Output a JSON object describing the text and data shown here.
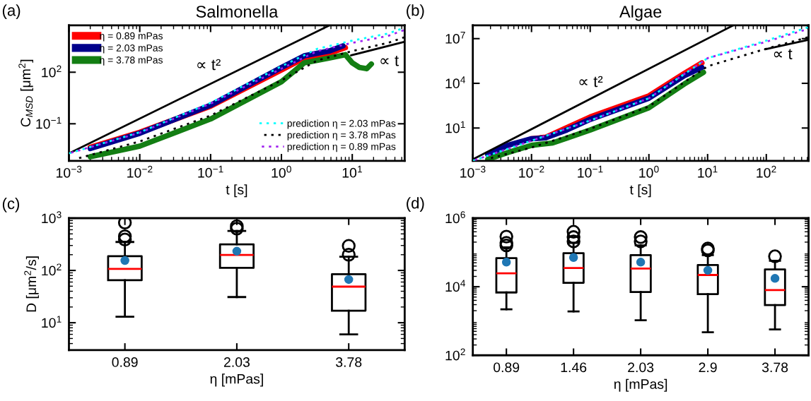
{
  "chart_data": [
    {
      "type": "line",
      "title": "Salmonella",
      "xlabel": "t [s]",
      "ylabel": "C$_{MSD}$ [μm$^{2}$]",
      "log": "xy",
      "legend": "top left",
      "xlim": [
        0.001,
        55
      ],
      "ylim": [
        0.0007,
        54000
      ],
      "xticks": [
        {
          "value": 0.001,
          "label": "10$^{−3}$"
        },
        {
          "value": 0.01,
          "label": "10$^{−2}$"
        },
        {
          "value": 0.1,
          "label": "10$^{−1}$"
        },
        {
          "value": 1,
          "label": "10$^{0}$"
        },
        {
          "value": 10,
          "label": "10$^{1}$"
        }
      ],
      "yticks": [
        {
          "value": 0.1,
          "label": "10$^{−1}$"
        },
        {
          "value": 100,
          "label": "10$^{2}$"
        }
      ],
      "annotations": [
        "(a)",
        "∝ t²",
        "∝ t"
      ],
      "series": [
        {
          "name": "η = 0.89 mPas",
          "color": "#ff0000",
          "line_style": "solid",
          "x": [
            0.002,
            0.01,
            0.1,
            1,
            2.1,
            4.7,
            8
          ],
          "values": [
            0.0043,
            0.032,
            1.05,
            135,
            660,
            1230,
            2700
          ]
        },
        {
          "name": "η = 2.03 mPas",
          "color": "#00008b",
          "line_style": "solid",
          "x": [
            0.002,
            0.01,
            0.1,
            1,
            2.1,
            4.7,
            7.4
          ],
          "values": [
            0.0036,
            0.028,
            1.2,
            190,
            900,
            1700,
            3400
          ]
        },
        {
          "name": "η = 3.78 mPas",
          "color": "#137e13",
          "line_style": "solid",
          "x": [
            0.002,
            0.01,
            0.1,
            1,
            2.1,
            4.7,
            8,
            10,
            12.6,
            16,
            18.6
          ],
          "values": [
            0.0012,
            0.005,
            0.19,
            28,
            350,
            660,
            1050,
            350,
            190,
            160,
            300
          ]
        },
        {
          "name": "prediction η = 2.03 mPas",
          "color": "#00ffff",
          "line_style": "dotted",
          "x": [
            0.001,
            0.01,
            0.1,
            1,
            3.2,
            10,
            32,
            55
          ],
          "values": [
            0.0019,
            0.032,
            1.66,
            220,
            2300,
            6900,
            17800,
            39000
          ]
        },
        {
          "name": "prediction η = 3.78 mPas",
          "color": "#000000",
          "line_style": "dotted",
          "x": [
            0.0012,
            0.01,
            0.1,
            1,
            3.2,
            10,
            32,
            55
          ],
          "values": [
            0.00085,
            0.0094,
            0.3,
            33,
            480,
            1700,
            5100,
            11000
          ]
        },
        {
          "name": "prediction η = 0.89 mPas",
          "color": "#a020f0",
          "line_style": "dotted",
          "x": [
            0.001,
            0.01,
            0.1,
            1,
            3.2,
            10,
            32,
            55
          ],
          "values": [
            0.0019,
            0.03,
            1.5,
            160,
            1700,
            5100,
            13000,
            29000
          ]
        },
        {
          "color": "#000000",
          "line_style": "solid",
          "x": [
            0.001,
            4.8
          ],
          "values": [
            0.0019,
            54000
          ]
        },
        {
          "color": "#000000",
          "line_style": "solid",
          "x": [
            9.6,
            55
          ],
          "values": [
            960,
            5900
          ]
        }
      ]
    },
    {
      "type": "line",
      "title": "Algae",
      "xlabel": "t [s]",
      "log": "xy",
      "xlim": [
        0.001,
        525
      ],
      "ylim": [
        0.063,
        79000000
      ],
      "xticks": [
        {
          "value": 0.001,
          "label": "10$^{−3}$"
        },
        {
          "value": 0.01,
          "label": "10$^{−2}$"
        },
        {
          "value": 0.1,
          "label": "10$^{−1}$"
        },
        {
          "value": 1,
          "label": "10$^{0}$"
        },
        {
          "value": 10,
          "label": "10$^{1}$"
        },
        {
          "value": 100,
          "label": "10$^{2}$"
        }
      ],
      "yticks": [
        {
          "value": 10,
          "label": "10$^{1}$"
        },
        {
          "value": 10000,
          "label": "10$^{4}$"
        },
        {
          "value": 10000000,
          "label": "10$^{7}$"
        }
      ],
      "annotations": [
        "(b)",
        "∝ t²",
        "∝ t"
      ],
      "series": [
        {
          "color": "#ff0000",
          "line_style": "solid",
          "x": [
            0.01,
            0.0174,
            0.04,
            0.1,
            1,
            4,
            8
          ],
          "values": [
            1.9,
            2.4,
            10.7,
            55,
            1450,
            46000,
            235000
          ]
        },
        {
          "color": "#00008b",
          "line_style": "solid",
          "x": [
            0.0018,
            0.004,
            0.01,
            0.0174,
            0.04,
            0.1,
            1,
            4,
            8
          ],
          "values": [
            0.16,
            0.7,
            1.9,
            2.2,
            7.4,
            38,
            1000,
            32000,
            115000
          ]
        },
        {
          "color": "#137e13",
          "line_style": "solid",
          "x": [
            0.0018,
            0.004,
            0.01,
            0.023,
            0.04,
            0.1,
            1,
            4,
            8.5
          ],
          "values": [
            0.079,
            0.23,
            0.69,
            1.0,
            2.1,
            7.4,
            230,
            8900,
            55000
          ]
        },
        {
          "color": "#00ffff",
          "line_style": "dotted",
          "x": [
            0.001,
            0.01,
            0.1,
            1,
            10,
            100,
            525
          ],
          "values": [
            0.063,
            1.4,
            32,
            1000,
            490000,
            7400000,
            59000000
          ]
        },
        {
          "color": "#000000",
          "line_style": "dotted",
          "x": [
            0.0017,
            0.01,
            0.1,
            1,
            10,
            100,
            525
          ],
          "values": [
            0.079,
            0.49,
            8.9,
            280,
            140000,
            2100000,
            12600000
          ]
        },
        {
          "color": "#a020f0",
          "line_style": "dotted",
          "x": [
            0.001,
            0.01,
            0.1,
            1,
            10,
            100,
            525
          ],
          "values": [
            0.063,
            1.4,
            32,
            1000,
            490000,
            6200000,
            46000000
          ]
        },
        {
          "color": "#000000",
          "line_style": "solid",
          "x": [
            0.001,
            27.5
          ],
          "values": [
            0.079,
            79000000
          ]
        },
        {
          "color": "#000000",
          "line_style": "solid",
          "x": [
            95,
            525
          ],
          "values": [
            1900000,
            8300000
          ]
        }
      ]
    },
    {
      "type": "box",
      "xlabel": "η [mPas]",
      "ylabel": "D [μm$^{2}$/s]",
      "log": "y",
      "ylim": [
        3,
        1000
      ],
      "yticks": [
        {
          "value": 10,
          "label": "10$^{1}$"
        },
        {
          "value": 100,
          "label": "10$^{2}$"
        },
        {
          "value": 1000,
          "label": "10$^{3}$"
        }
      ],
      "categories": [
        "0.89",
        "2.03",
        "3.78"
      ],
      "annotations": [
        "(c)"
      ],
      "boxes": [
        {
          "low": 13,
          "q1": 65,
          "median": 107,
          "q3": 187,
          "high": 350,
          "mean": 155,
          "outliers": [
            820,
            450,
            390
          ]
        },
        {
          "low": 31,
          "q1": 112,
          "median": 198,
          "q3": 316,
          "high": 570,
          "mean": 233,
          "outliers": [
            700,
            630
          ]
        },
        {
          "low": 6,
          "q1": 17,
          "median": 49,
          "q3": 85,
          "high": 183,
          "mean": 67,
          "outliers": [
            295,
            200
          ]
        }
      ]
    },
    {
      "type": "box",
      "xlabel": "η [mPas]",
      "log": "y",
      "ylim": [
        100,
        1000000
      ],
      "yticks": [
        {
          "value": 100,
          "label": "10$^{2}$"
        },
        {
          "value": 10000,
          "label": "10$^{4}$"
        },
        {
          "value": 1000000,
          "label": "10$^{6}$"
        }
      ],
      "categories": [
        "0.89",
        "1.46",
        "2.03",
        "2.9",
        "3.78"
      ],
      "annotations": [
        "(d)"
      ],
      "boxes": [
        {
          "low": 2200,
          "q1": 6800,
          "median": 24500,
          "q3": 68000,
          "high": 140000,
          "mean": 52000,
          "outliers": [
            290000,
            190000,
            160000
          ]
        },
        {
          "low": 1900,
          "q1": 13000,
          "median": 35000,
          "q3": 95000,
          "high": 190000,
          "mean": 71000,
          "outliers": [
            400000,
            280000,
            210000
          ]
        },
        {
          "low": 1050,
          "q1": 7000,
          "median": 34000,
          "q3": 83000,
          "high": 160000,
          "mean": 52000,
          "outliers": [
            280000,
            210000
          ]
        },
        {
          "low": 470,
          "q1": 6100,
          "median": 22000,
          "q3": 43000,
          "high": 83000,
          "mean": 30000,
          "outliers": [
            130000,
            115000
          ]
        },
        {
          "low": 570,
          "q1": 2900,
          "median": 8000,
          "q3": 32000,
          "high": 57000,
          "mean": 17500,
          "outliers": [
            77000
          ]
        }
      ]
    }
  ]
}
